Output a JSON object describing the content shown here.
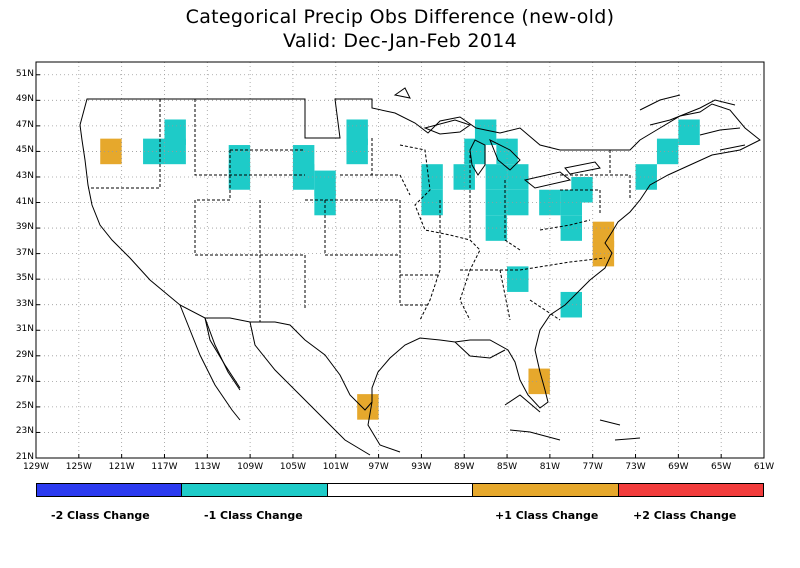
{
  "title": {
    "line1": "Categorical Precip Obs Difference (new-old)",
    "line2": "Valid: Dec-Jan-Feb 2014"
  },
  "axes": {
    "lon_labels": [
      "129W",
      "125W",
      "121W",
      "117W",
      "113W",
      "109W",
      "105W",
      "101W",
      "97W",
      "93W",
      "89W",
      "85W",
      "81W",
      "77W",
      "73W",
      "69W",
      "65W",
      "61W"
    ],
    "lat_labels": [
      "51N",
      "49N",
      "47N",
      "45N",
      "43N",
      "41N",
      "39N",
      "37N",
      "35N",
      "33N",
      "31N",
      "29N",
      "27N",
      "25N",
      "23N",
      "21N"
    ]
  },
  "colors": {
    "minus2": "#2b3bf0",
    "minus1": "#1ecbc8",
    "none": "#ffffff",
    "plus1": "#e6a82c",
    "plus2": "#f23c3c",
    "grid": "#9a9a9a",
    "border": "#000000"
  },
  "legend": {
    "labels": [
      "-2 Class Change",
      "-1 Class Change",
      "+1 Class Change",
      "+2 Class Change"
    ]
  },
  "cells": [
    {
      "lon": 122,
      "lat": 45,
      "cls": "+1"
    },
    {
      "lon": 118,
      "lat": 45,
      "cls": "-1"
    },
    {
      "lon": 116,
      "lat": 45,
      "cls": "-1"
    },
    {
      "lon": 116,
      "lat": 46.5,
      "cls": "-1"
    },
    {
      "lon": 110,
      "lat": 43,
      "cls": "-1"
    },
    {
      "lon": 110,
      "lat": 44.5,
      "cls": "-1"
    },
    {
      "lon": 104,
      "lat": 43,
      "cls": "-1"
    },
    {
      "lon": 104,
      "lat": 44.5,
      "cls": "-1"
    },
    {
      "lon": 102,
      "lat": 41,
      "cls": "-1"
    },
    {
      "lon": 102,
      "lat": 42.5,
      "cls": "-1"
    },
    {
      "lon": 99,
      "lat": 45,
      "cls": "-1"
    },
    {
      "lon": 99,
      "lat": 46.5,
      "cls": "-1"
    },
    {
      "lon": 92,
      "lat": 41,
      "cls": "-1"
    },
    {
      "lon": 92,
      "lat": 43,
      "cls": "-1"
    },
    {
      "lon": 89,
      "lat": 43,
      "cls": "-1"
    },
    {
      "lon": 88,
      "lat": 45,
      "cls": "-1"
    },
    {
      "lon": 87,
      "lat": 46.5,
      "cls": "-1"
    },
    {
      "lon": 85,
      "lat": 45,
      "cls": "-1"
    },
    {
      "lon": 86,
      "lat": 39,
      "cls": "-1"
    },
    {
      "lon": 86,
      "lat": 41,
      "cls": "-1"
    },
    {
      "lon": 86,
      "lat": 43,
      "cls": "-1"
    },
    {
      "lon": 84,
      "lat": 41,
      "cls": "-1"
    },
    {
      "lon": 84,
      "lat": 43,
      "cls": "-1"
    },
    {
      "lon": 84,
      "lat": 35,
      "cls": "-1"
    },
    {
      "lon": 81,
      "lat": 41,
      "cls": "-1"
    },
    {
      "lon": 79,
      "lat": 41,
      "cls": "-1"
    },
    {
      "lon": 79,
      "lat": 39,
      "cls": "-1"
    },
    {
      "lon": 78,
      "lat": 42,
      "cls": "-1"
    },
    {
      "lon": 76,
      "lat": 37,
      "cls": "+1"
    },
    {
      "lon": 76,
      "lat": 38.5,
      "cls": "+1"
    },
    {
      "lon": 79,
      "lat": 33,
      "cls": "-1"
    },
    {
      "lon": 72,
      "lat": 43,
      "cls": "-1"
    },
    {
      "lon": 70,
      "lat": 45,
      "cls": "-1"
    },
    {
      "lon": 68,
      "lat": 46.5,
      "cls": "-1"
    },
    {
      "lon": 82,
      "lat": 27,
      "cls": "+1"
    },
    {
      "lon": 98,
      "lat": 25,
      "cls": "+1"
    }
  ]
}
